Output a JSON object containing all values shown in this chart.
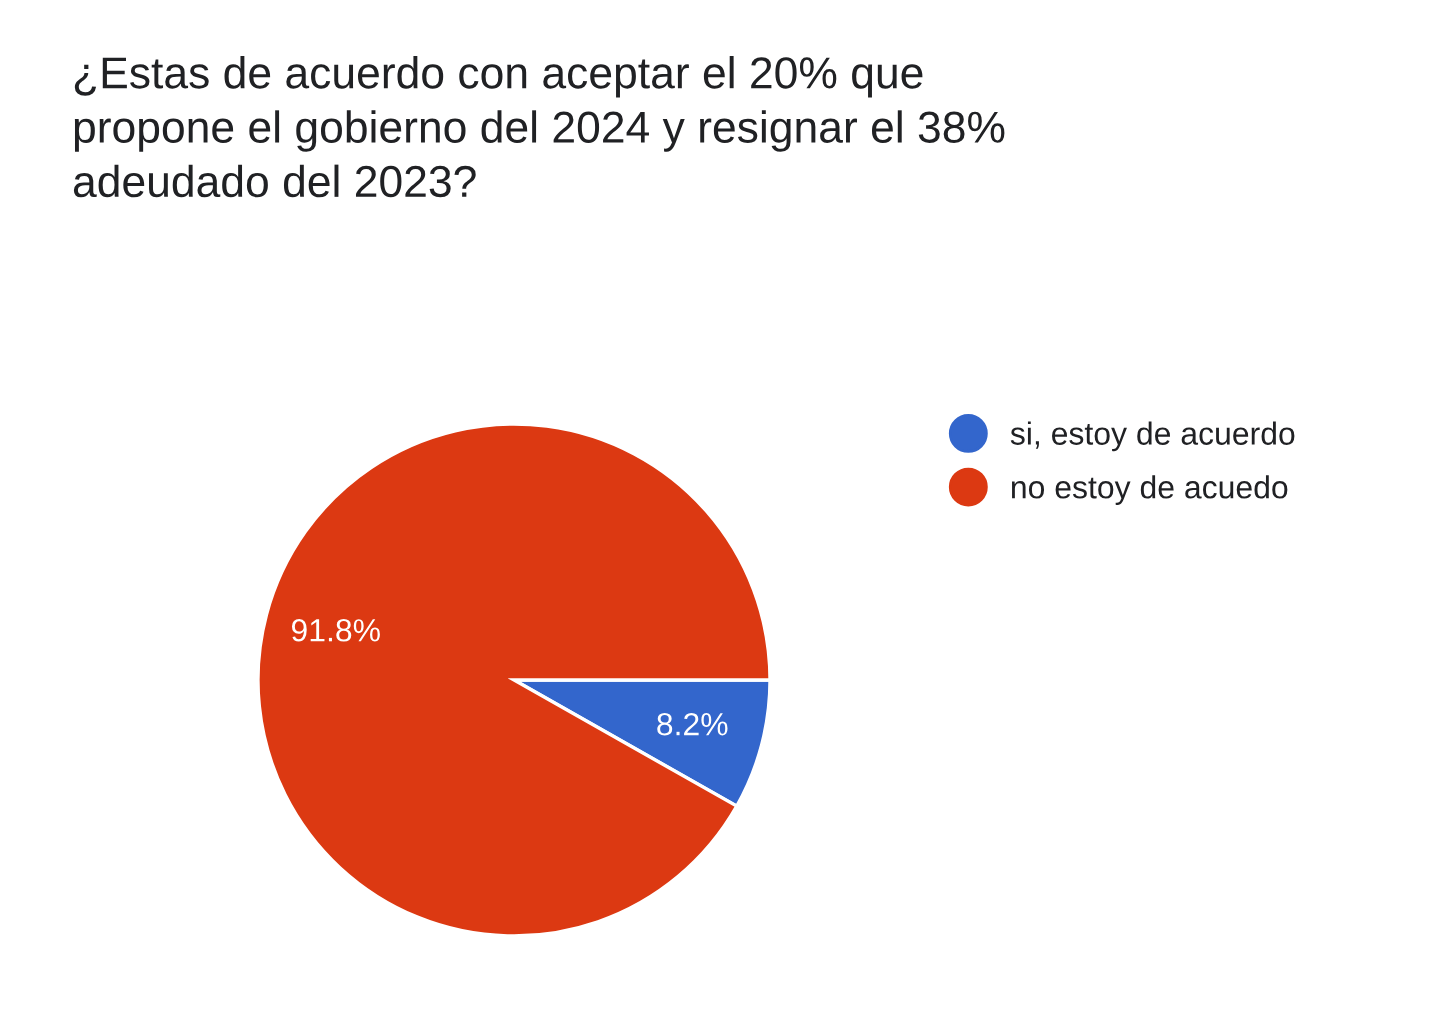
{
  "chart_data": {
    "type": "pie",
    "title": "¿Estas de acuerdo con aceptar el 20% que propone el gobierno del 2024 y resignar el 38% adeudado del 2023?",
    "categories": [
      "si, estoy de acuerdo",
      "no estoy de acuedo"
    ],
    "values": [
      8.2,
      91.8
    ],
    "colors": [
      "#3366cc",
      "#dc3912"
    ],
    "value_labels": [
      "8.2%",
      "91.8%"
    ],
    "legend": "right"
  }
}
